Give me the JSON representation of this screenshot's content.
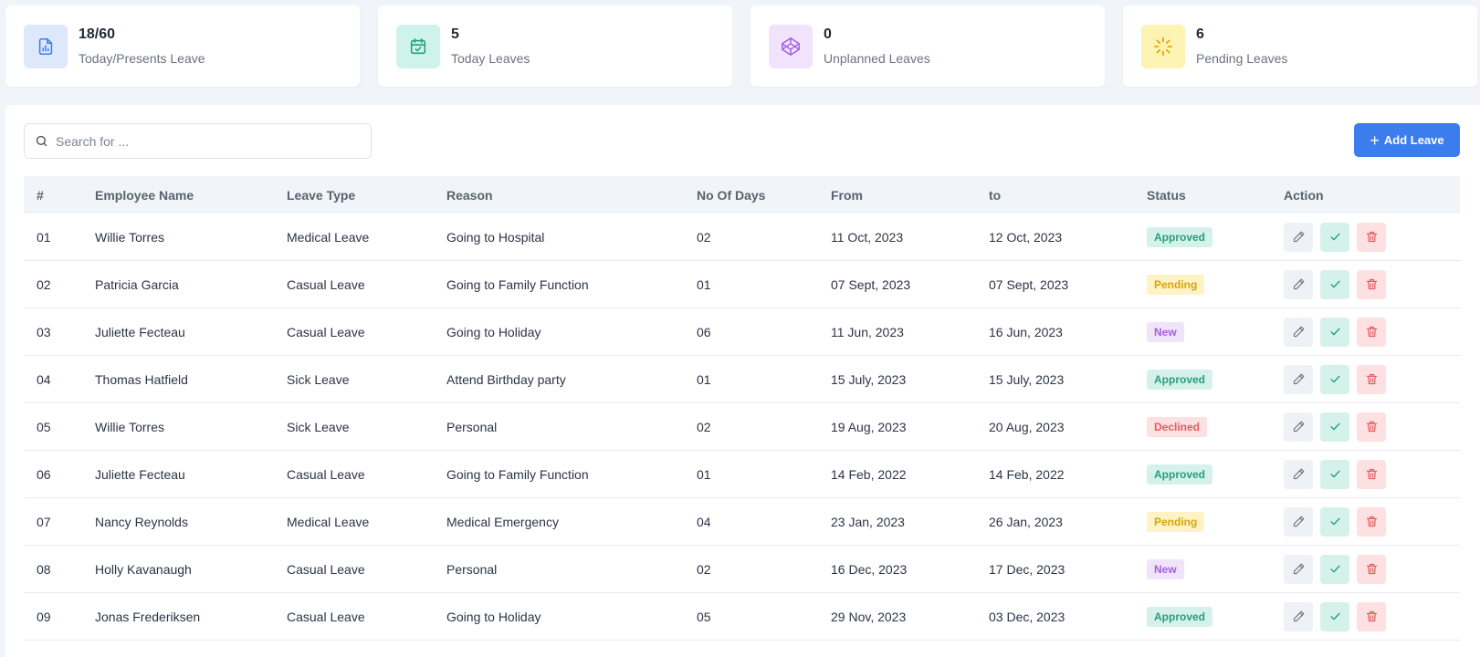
{
  "stats": [
    {
      "value": "18/60",
      "label": "Today/Presents Leave",
      "icon": "chart-report-icon",
      "bg": "#dde8fb",
      "color": "#3b7ded"
    },
    {
      "value": "5",
      "label": "Today Leaves",
      "icon": "calendar-check-icon",
      "bg": "#cff3ea",
      "color": "#22a07e"
    },
    {
      "value": "0",
      "label": "Unplanned Leaves",
      "icon": "codepen-cube-icon",
      "bg": "#f1e3fb",
      "color": "#a55ee2"
    },
    {
      "value": "6",
      "label": "Pending Leaves",
      "icon": "loader-icon",
      "bg": "#fdf3b3",
      "color": "#e3a708"
    }
  ],
  "search": {
    "placeholder": "Search for ..."
  },
  "add_button": {
    "label": "Add Leave"
  },
  "table": {
    "headers": [
      "#",
      "Employee Name",
      "Leave Type",
      "Reason",
      "No Of Days",
      "From",
      "to",
      "Status",
      "Action"
    ],
    "rows": [
      {
        "no": "01",
        "name": "Willie Torres",
        "type": "Medical Leave",
        "reason": "Going to Hospital",
        "days": "02",
        "from": "11 Oct, 2023",
        "to": "12 Oct, 2023",
        "status": "Approved"
      },
      {
        "no": "02",
        "name": "Patricia Garcia",
        "type": "Casual Leave",
        "reason": "Going to Family Function",
        "days": "01",
        "from": "07 Sept, 2023",
        "to": "07 Sept, 2023",
        "status": "Pending"
      },
      {
        "no": "03",
        "name": "Juliette Fecteau",
        "type": "Casual Leave",
        "reason": "Going to Holiday",
        "days": "06",
        "from": "11 Jun, 2023",
        "to": "16 Jun, 2023",
        "status": "New"
      },
      {
        "no": "04",
        "name": "Thomas Hatfield",
        "type": "Sick Leave",
        "reason": "Attend Birthday party",
        "days": "01",
        "from": "15 July, 2023",
        "to": "15 July, 2023",
        "status": "Approved"
      },
      {
        "no": "05",
        "name": "Willie Torres",
        "type": "Sick Leave",
        "reason": "Personal",
        "days": "02",
        "from": "19 Aug, 2023",
        "to": "20 Aug, 2023",
        "status": "Declined"
      },
      {
        "no": "06",
        "name": "Juliette Fecteau",
        "type": "Casual Leave",
        "reason": "Going to Family Function",
        "days": "01",
        "from": "14 Feb, 2022",
        "to": "14 Feb, 2022",
        "status": "Approved"
      },
      {
        "no": "07",
        "name": "Nancy Reynolds",
        "type": "Medical Leave",
        "reason": "Medical Emergency",
        "days": "04",
        "from": "23 Jan, 2023",
        "to": "26 Jan, 2023",
        "status": "Pending"
      },
      {
        "no": "08",
        "name": "Holly Kavanaugh",
        "type": "Casual Leave",
        "reason": "Personal",
        "days": "02",
        "from": "16 Dec, 2023",
        "to": "17 Dec, 2023",
        "status": "New"
      },
      {
        "no": "09",
        "name": "Jonas Frederiksen",
        "type": "Casual Leave",
        "reason": "Going to Holiday",
        "days": "05",
        "from": "29 Nov, 2023",
        "to": "03 Dec, 2023",
        "status": "Approved"
      }
    ]
  },
  "actions": [
    {
      "icon": "pencil-icon",
      "name": "edit-button"
    },
    {
      "icon": "check-icon",
      "name": "approve-button"
    },
    {
      "icon": "trash-icon",
      "name": "delete-button"
    }
  ],
  "colors": {
    "accent": "#3b7ded",
    "approved": "#2a9d7c",
    "pending": "#d8a50c",
    "new": "#a55ee2",
    "declined": "#e25c61"
  }
}
